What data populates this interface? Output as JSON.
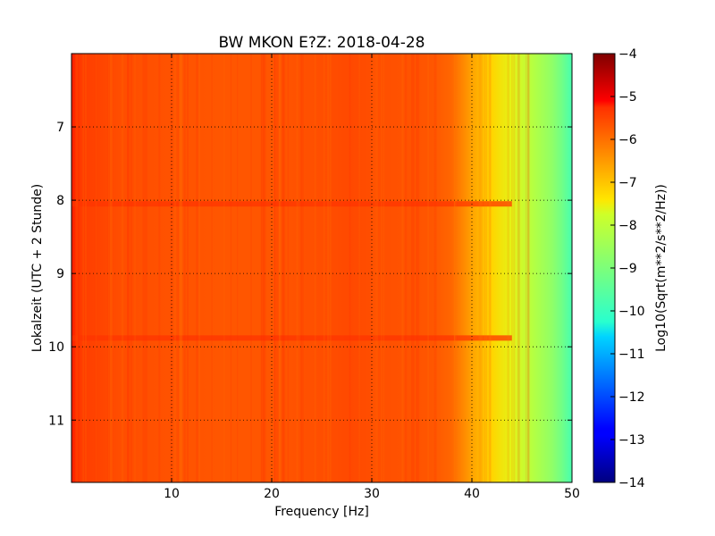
{
  "chart_data": {
    "type": "heatmap",
    "title": "BW MKON E?Z: 2018-04-28",
    "xlabel": "Frequency [Hz]",
    "ylabel": "Lokalzeit (UTC + 2 Stunde)",
    "colorbar_label": "Log10(Sqrt(m**2/s**2/Hz))",
    "xlim": [
      0,
      50
    ],
    "ylim": [
      6.0,
      11.85
    ],
    "y_inverted": true,
    "x_ticks": [
      10,
      20,
      30,
      40,
      50
    ],
    "x_tick_labels": [
      "10",
      "20",
      "30",
      "40",
      "50"
    ],
    "y_ticks": [
      7,
      8,
      9,
      10,
      11
    ],
    "y_tick_labels": [
      "7",
      "8",
      "9",
      "10",
      "11"
    ],
    "color_range": [
      -14,
      -4
    ],
    "colorbar_ticks": [
      -4,
      -5,
      -6,
      -7,
      -8,
      -9,
      -10,
      -11,
      -12,
      -13,
      -14
    ],
    "colorbar_tick_labels": [
      "−4",
      "−5",
      "−6",
      "−7",
      "−8",
      "−9",
      "−10",
      "−11",
      "−12",
      "−13",
      "−14"
    ],
    "colormap": "jet",
    "grid": true,
    "spectrum_profile": {
      "frequency_hz": [
        0,
        1,
        3,
        5,
        10,
        15,
        20,
        25,
        28,
        30,
        33,
        36,
        38,
        40,
        42,
        44,
        46,
        48,
        49,
        50
      ],
      "log10_amplitude": [
        -5.2,
        -5.4,
        -5.5,
        -5.6,
        -5.65,
        -5.7,
        -5.7,
        -5.6,
        -5.55,
        -5.6,
        -5.65,
        -5.7,
        -5.9,
        -6.6,
        -7.2,
        -7.6,
        -8.1,
        -8.7,
        -9.2,
        -9.8
      ]
    },
    "horizontal_bands_hour": [
      8.05,
      9.88
    ],
    "band_log10_amplitude": -5.3
  }
}
